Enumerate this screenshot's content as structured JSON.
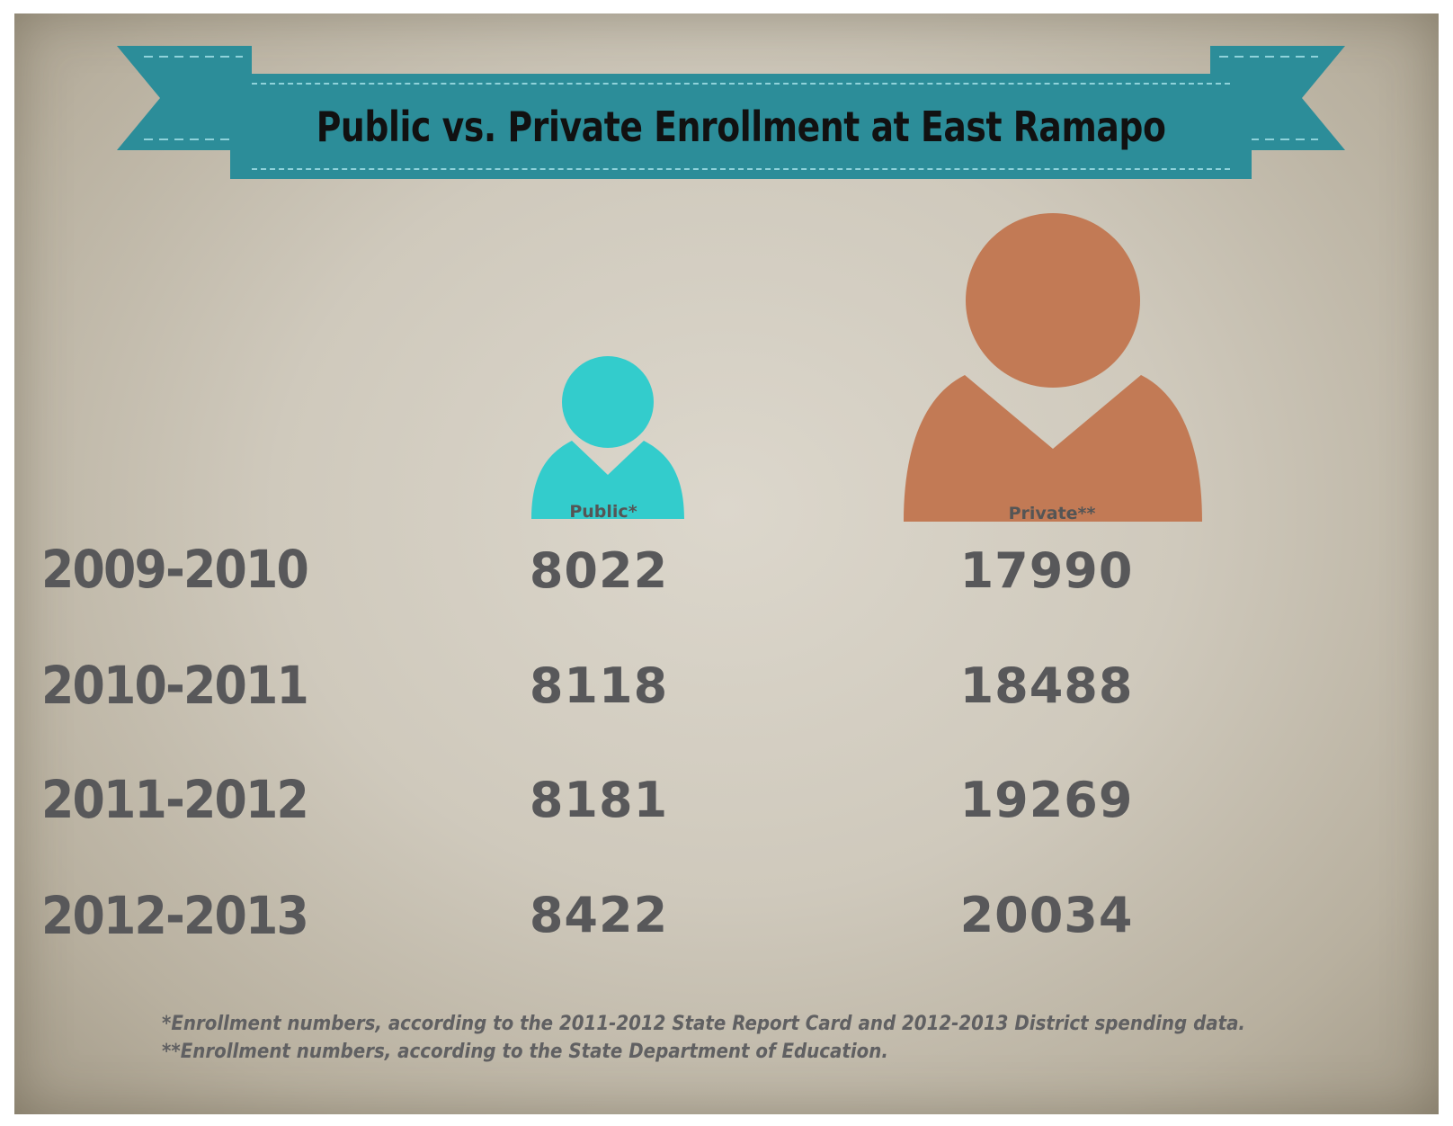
{
  "title": "Public vs. Private Enrollment at East Ramapo",
  "colors": {
    "banner": "#2c8d99",
    "public": "#33cccc",
    "private": "#c27a55",
    "text": "#58585a"
  },
  "chart_data": {
    "type": "table",
    "title": "Public vs. Private Enrollment at East Ramapo",
    "categories": [
      "2009-2010",
      "2010-2011",
      "2011-2012",
      "2012-2013"
    ],
    "series": [
      {
        "name": "Public*",
        "values": [
          8022,
          8118,
          8181,
          8422
        ]
      },
      {
        "name": "Private**",
        "values": [
          17990,
          18488,
          19269,
          20034
        ]
      }
    ]
  },
  "footnotes": [
    "*Enrollment numbers, according to the 2011-2012 State Report Card and 2012-2013 District spending data.",
    "**Enrollment numbers, according to the State Department of Education."
  ]
}
